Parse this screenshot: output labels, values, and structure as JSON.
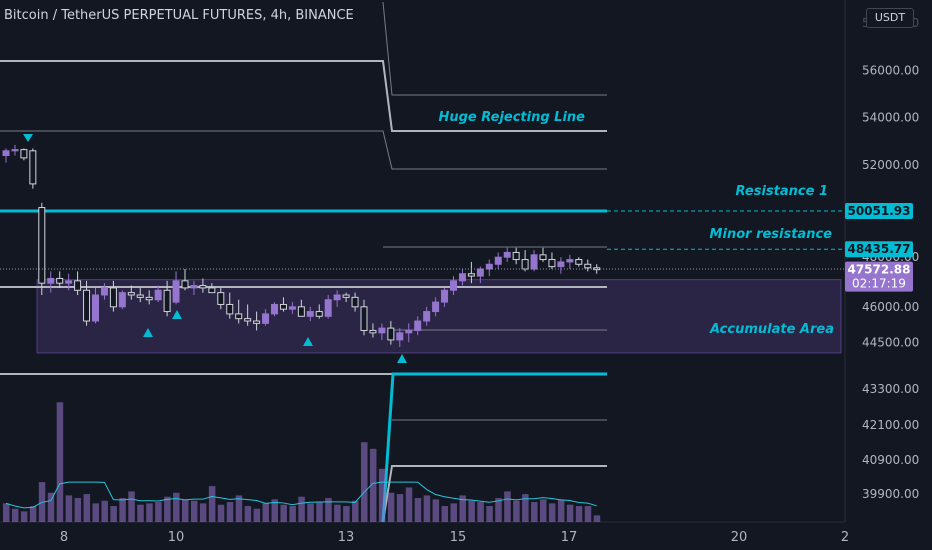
{
  "header": {
    "title": "Bitcoin / TetherUS PERPETUAL FUTURES, 4h, BINANCE",
    "currency": "USDT"
  },
  "chart_data": {
    "type": "candlestick",
    "x_ticks": [
      "8",
      "10",
      "13",
      "15",
      "17",
      "20",
      "2"
    ],
    "y_ticks": [
      56000.0,
      54000.0,
      52000.0,
      48000.0,
      46000.0,
      44500.0,
      43300.0,
      42100.0,
      40900.0,
      39900.0
    ],
    "y_tick_labels": [
      "56000.00",
      "54000.00",
      "52000.00",
      "48000.00",
      "46000.00",
      "44500.00",
      "43300.00",
      "42100.00",
      "40900.00",
      "39900.00"
    ],
    "price_labels": [
      {
        "text": "50051.93",
        "value": 50051.93,
        "color": "#00bcd4"
      },
      {
        "text": "48435.77",
        "value": 48435.77,
        "color": "#00bcd4"
      },
      {
        "text": "47572.88",
        "value": 47572.88,
        "color": "#9575cd",
        "countdown": "02:17:19"
      }
    ],
    "annotations": [
      {
        "text": "Huge Rejecting Line",
        "color": "#00bcd4"
      },
      {
        "text": "Resistance 1",
        "color": "#00bcd4"
      },
      {
        "text": "Minor resistance",
        "color": "#00bcd4"
      },
      {
        "text": "Accumulate Area",
        "color": "#00bcd4"
      }
    ],
    "resistance_1": 50051.93,
    "minor_resistance": 48435.77,
    "accumulate_area": {
      "top": 47150,
      "bottom": 44050
    },
    "candles": [
      [
        52400,
        52700,
        52100,
        52600
      ],
      [
        52600,
        52850,
        52400,
        52650
      ],
      [
        52650,
        52700,
        52200,
        52300
      ],
      [
        52600,
        52700,
        51000,
        51200
      ],
      [
        50200,
        50400,
        46500,
        47000
      ],
      [
        47000,
        47500,
        46600,
        47200
      ],
      [
        47200,
        47500,
        46800,
        47000
      ],
      [
        47000,
        47400,
        46700,
        47100
      ],
      [
        47100,
        47500,
        46500,
        46700
      ],
      [
        46700,
        47100,
        45200,
        45400
      ],
      [
        45400,
        46800,
        45300,
        46500
      ],
      [
        46500,
        47000,
        46300,
        46800
      ],
      [
        46800,
        47100,
        45800,
        46000
      ],
      [
        46000,
        46700,
        45900,
        46600
      ],
      [
        46600,
        46900,
        46300,
        46500
      ],
      [
        46500,
        46800,
        46200,
        46400
      ],
      [
        46400,
        46700,
        46100,
        46300
      ],
      [
        46300,
        46900,
        46200,
        46700
      ],
      [
        46700,
        47100,
        45600,
        45800
      ],
      [
        46200,
        47500,
        46100,
        47100
      ],
      [
        47100,
        47600,
        46700,
        46800
      ],
      [
        46800,
        47100,
        46500,
        46900
      ],
      [
        46900,
        47200,
        46600,
        46800
      ],
      [
        46800,
        47000,
        46600,
        46600
      ],
      [
        46600,
        46800,
        45900,
        46100
      ],
      [
        46100,
        46600,
        45500,
        45700
      ],
      [
        45700,
        46300,
        45300,
        45500
      ],
      [
        45500,
        46100,
        45200,
        45400
      ],
      [
        45400,
        45800,
        45000,
        45300
      ],
      [
        45300,
        45900,
        45200,
        45700
      ],
      [
        45700,
        46200,
        45600,
        46100
      ],
      [
        46100,
        46400,
        45800,
        45900
      ],
      [
        45900,
        46200,
        45700,
        46000
      ],
      [
        46000,
        46300,
        45600,
        45600
      ],
      [
        45600,
        46000,
        45400,
        45800
      ],
      [
        45800,
        46100,
        45500,
        45600
      ],
      [
        45600,
        46500,
        45500,
        46300
      ],
      [
        46300,
        46700,
        46000,
        46500
      ],
      [
        46500,
        46600,
        46200,
        46400
      ],
      [
        46400,
        46600,
        45800,
        46000
      ],
      [
        46000,
        46300,
        44800,
        45000
      ],
      [
        45000,
        45300,
        44700,
        44900
      ],
      [
        44900,
        45300,
        44600,
        45100
      ],
      [
        45100,
        45400,
        44400,
        44600
      ],
      [
        44600,
        45100,
        44300,
        44900
      ],
      [
        44900,
        45300,
        44500,
        45000
      ],
      [
        45000,
        45600,
        44800,
        45400
      ],
      [
        45400,
        46000,
        45200,
        45800
      ],
      [
        45800,
        46400,
        45600,
        46200
      ],
      [
        46200,
        46800,
        46000,
        46700
      ],
      [
        46700,
        47300,
        46500,
        47100
      ],
      [
        47100,
        47600,
        46900,
        47400
      ],
      [
        47400,
        47900,
        47000,
        47300
      ],
      [
        47300,
        47700,
        47000,
        47600
      ],
      [
        47600,
        48000,
        47300,
        47800
      ],
      [
        47800,
        48300,
        47600,
        48100
      ],
      [
        48100,
        48500,
        47900,
        48300
      ],
      [
        48300,
        48500,
        47800,
        48000
      ],
      [
        48000,
        48400,
        47500,
        47600
      ],
      [
        47600,
        48400,
        47500,
        48200
      ],
      [
        48200,
        48500,
        47900,
        48000
      ],
      [
        48000,
        48300,
        47600,
        47700
      ],
      [
        47700,
        48100,
        47400,
        47900
      ],
      [
        47900,
        48200,
        47600,
        48000
      ],
      [
        48000,
        48100,
        47700,
        47800
      ],
      [
        47800,
        48000,
        47500,
        47650
      ],
      [
        47650,
        47800,
        47400,
        47573
      ]
    ],
    "volumes": [
      0.14,
      0.1,
      0.08,
      0.12,
      0.3,
      0.22,
      0.9,
      0.2,
      0.18,
      0.21,
      0.14,
      0.16,
      0.12,
      0.18,
      0.23,
      0.13,
      0.14,
      0.15,
      0.19,
      0.22,
      0.17,
      0.16,
      0.14,
      0.27,
      0.13,
      0.15,
      0.2,
      0.12,
      0.1,
      0.14,
      0.17,
      0.13,
      0.12,
      0.19,
      0.14,
      0.15,
      0.18,
      0.13,
      0.12,
      0.16,
      0.6,
      0.55,
      0.4,
      0.22,
      0.21,
      0.26,
      0.18,
      0.2,
      0.17,
      0.12,
      0.14,
      0.2,
      0.16,
      0.15,
      0.12,
      0.18,
      0.23,
      0.16,
      0.21,
      0.15,
      0.17,
      0.14,
      0.17,
      0.13,
      0.12,
      0.12,
      0.05
    ]
  }
}
